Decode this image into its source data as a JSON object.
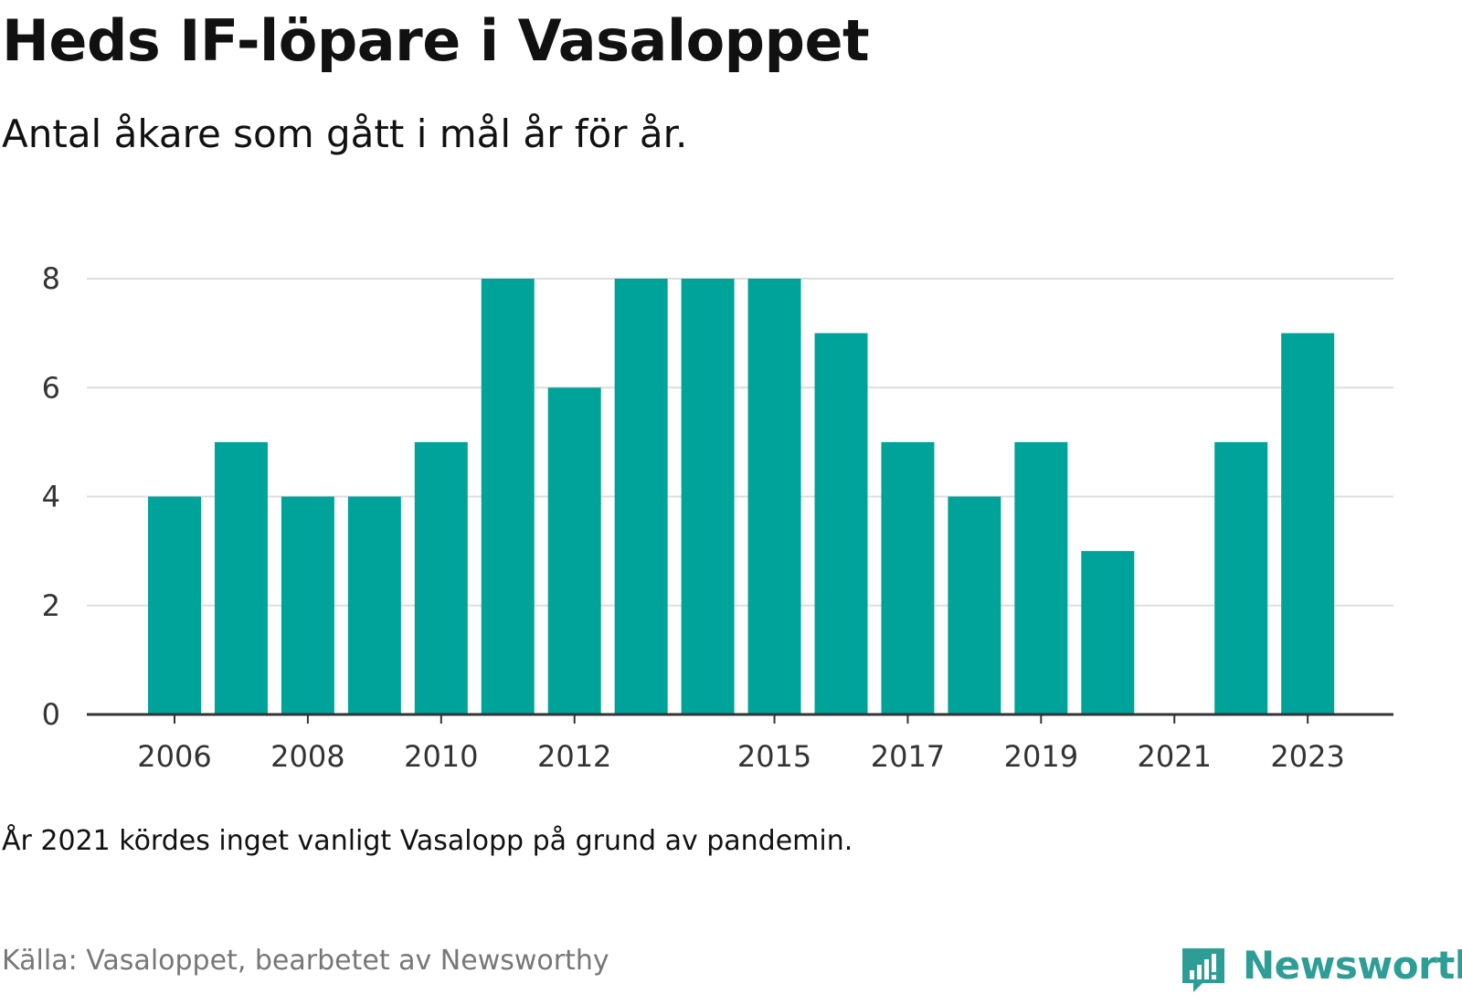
{
  "header": {
    "title": "Heds IF-löpare i Vasaloppet",
    "subtitle": "Antal åkare som gått i mål år för år."
  },
  "footer": {
    "note": "År 2021 kördes inget vanligt Vasalopp på grund av pandemin.",
    "source": "Källa: Vasaloppet, bearbetet av Newsworthy",
    "logo_text": "Newsworthy"
  },
  "colors": {
    "bar": "#00a39a",
    "grid": "#dddddd",
    "axis": "#333333",
    "brand": "#2e9d96"
  },
  "chart_data": {
    "type": "bar",
    "title": "Heds IF-löpare i Vasaloppet",
    "subtitle": "Antal åkare som gått i mål år för år.",
    "xlabel": "",
    "ylabel": "",
    "categories": [
      2006,
      2007,
      2008,
      2009,
      2010,
      2011,
      2012,
      2013,
      2014,
      2015,
      2016,
      2017,
      2018,
      2019,
      2020,
      2021,
      2022,
      2023
    ],
    "values": [
      4,
      5,
      4,
      4,
      5,
      8,
      6,
      8,
      8,
      8,
      7,
      5,
      4,
      5,
      3,
      0,
      5,
      7
    ],
    "x_tick_labels": [
      "2006",
      "2008",
      "2010",
      "2012",
      "2015",
      "2017",
      "2019",
      "2021",
      "2023"
    ],
    "y_ticks": [
      0,
      2,
      4,
      6,
      8
    ],
    "ylim": [
      0,
      8
    ],
    "grid": true,
    "legend": "none"
  }
}
